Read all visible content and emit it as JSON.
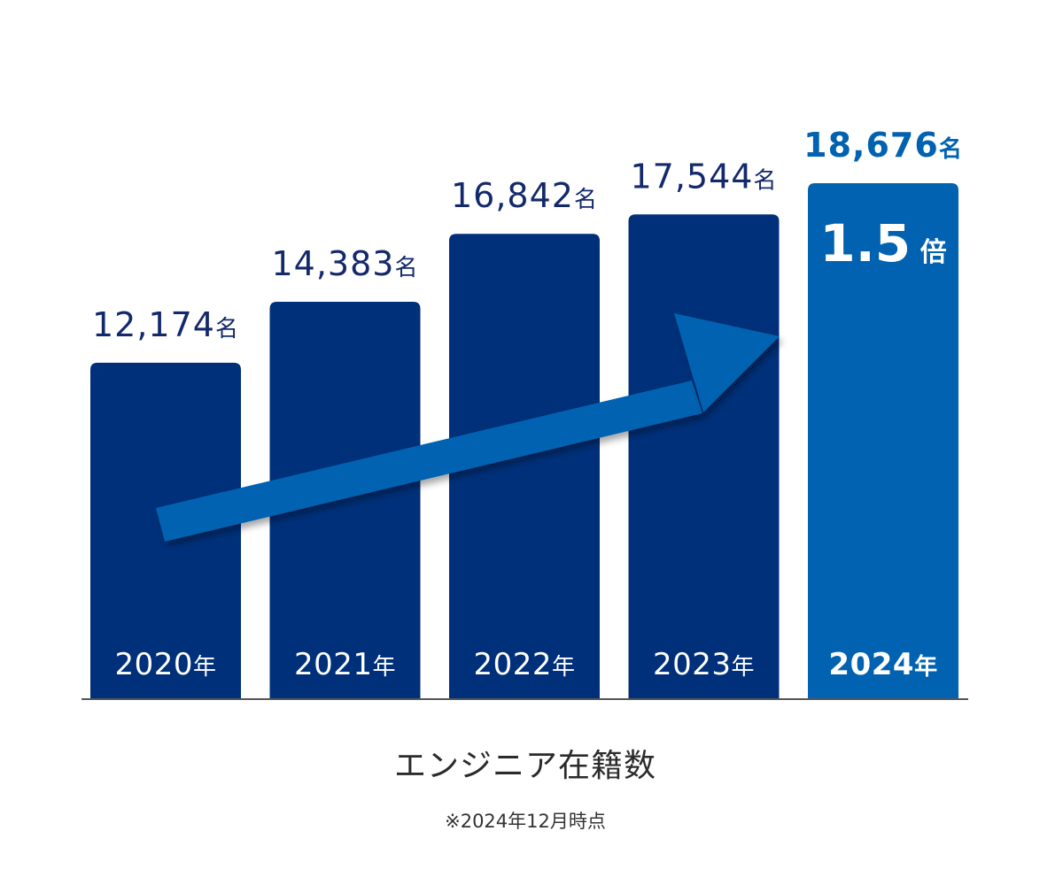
{
  "chart_data": {
    "type": "bar",
    "categories": [
      "2020",
      "2021",
      "2022",
      "2023",
      "2024"
    ],
    "category_suffix": "年",
    "values": [
      12174,
      14383,
      16842,
      17544,
      18676
    ],
    "value_labels": [
      "12,174",
      "14,383",
      "16,842",
      "17,544",
      "18,676"
    ],
    "value_suffix": "名",
    "highlight_index": 4,
    "annotation": {
      "text": "1.5",
      "suffix": "倍",
      "arrow_direction": "up-right"
    },
    "title": "エンジニア在籍数",
    "note": "※2024年12月時点",
    "xlabel": "",
    "ylabel": "",
    "ylim": [
      0,
      20500
    ],
    "grid": false,
    "legend": "none",
    "colors": {
      "bar": "#00307a",
      "highlight": "#0062b0",
      "arrow": "#0062b0",
      "value_text": "#13296b",
      "highlight_text": "#0062b0",
      "axis": "#555555",
      "bar_text": "#ffffff"
    }
  }
}
